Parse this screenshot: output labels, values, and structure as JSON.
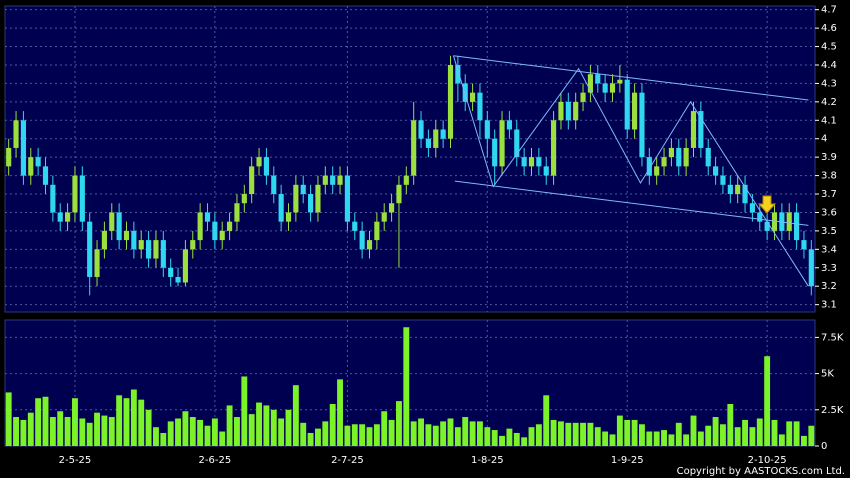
{
  "chart_data": [
    {
      "type": "candlestick",
      "categories": [
        null,
        null,
        null,
        null,
        null,
        null,
        null,
        null,
        null,
        "2-5-25",
        null,
        null,
        null,
        null,
        null,
        null,
        null,
        null,
        null,
        null,
        null,
        null,
        null,
        null,
        null,
        null,
        null,
        null,
        "2-6-25",
        null,
        null,
        null,
        null,
        null,
        null,
        null,
        null,
        null,
        null,
        null,
        null,
        null,
        null,
        null,
        null,
        null,
        "2-7-25",
        null,
        null,
        null,
        null,
        null,
        null,
        null,
        null,
        null,
        null,
        null,
        null,
        null,
        null,
        null,
        null,
        null,
        null,
        "1-8-25",
        null,
        null,
        null,
        null,
        null,
        null,
        null,
        null,
        null,
        null,
        null,
        null,
        null,
        null,
        null,
        null,
        null,
        null,
        "1-9-25",
        null,
        null,
        null,
        null,
        null,
        null,
        null,
        null,
        null,
        null,
        null,
        null,
        null,
        null,
        null,
        null,
        null,
        null,
        "2-10-25",
        null,
        null,
        null,
        null,
        null,
        null
      ],
      "open": [
        3.85,
        3.95,
        4.1,
        3.8,
        3.9,
        3.85,
        3.75,
        3.6,
        3.55,
        3.6,
        3.8,
        3.55,
        3.25,
        3.4,
        3.5,
        3.6,
        3.45,
        3.5,
        3.4,
        3.45,
        3.35,
        3.45,
        3.3,
        3.25,
        3.22,
        3.4,
        3.45,
        3.6,
        3.55,
        3.45,
        3.5,
        3.55,
        3.65,
        3.7,
        3.85,
        3.9,
        3.8,
        3.7,
        3.55,
        3.6,
        3.75,
        3.7,
        3.6,
        3.75,
        3.8,
        3.75,
        3.8,
        3.55,
        3.5,
        3.4,
        3.45,
        3.55,
        3.6,
        3.65,
        3.75,
        3.8,
        4.1,
        4.0,
        3.95,
        4.05,
        4.0,
        4.4,
        4.3,
        4.2,
        4.25,
        4.1,
        4.0,
        3.85,
        4.1,
        4.05,
        3.9,
        3.85,
        3.9,
        3.85,
        3.8,
        4.1,
        4.2,
        4.1,
        4.2,
        4.25,
        4.35,
        4.3,
        4.25,
        4.3,
        4.32,
        4.05,
        4.25,
        3.9,
        3.8,
        3.85,
        3.9,
        3.95,
        3.85,
        3.95,
        4.15,
        3.95,
        3.85,
        3.8,
        3.75,
        3.7,
        3.75,
        3.65,
        3.6,
        3.55,
        3.5,
        3.6,
        3.5,
        3.6,
        3.45,
        3.4
      ],
      "high": [
        4.0,
        4.15,
        4.15,
        3.95,
        3.95,
        3.9,
        3.8,
        3.65,
        3.65,
        3.85,
        3.85,
        3.6,
        3.45,
        3.55,
        3.65,
        3.65,
        3.55,
        3.55,
        3.5,
        3.5,
        3.5,
        3.5,
        3.35,
        3.3,
        3.45,
        3.5,
        3.65,
        3.65,
        3.6,
        3.55,
        3.6,
        3.7,
        3.75,
        3.9,
        3.95,
        3.95,
        3.85,
        3.75,
        3.65,
        3.8,
        3.8,
        3.75,
        3.8,
        3.85,
        3.85,
        3.85,
        3.85,
        3.6,
        3.55,
        3.5,
        3.6,
        3.65,
        3.7,
        3.8,
        3.85,
        4.2,
        4.15,
        4.05,
        4.1,
        4.1,
        4.45,
        4.45,
        4.35,
        4.3,
        4.3,
        4.15,
        4.05,
        4.15,
        4.15,
        4.1,
        3.95,
        3.95,
        3.95,
        3.9,
        4.15,
        4.25,
        4.25,
        4.25,
        4.3,
        4.4,
        4.4,
        4.35,
        4.35,
        4.4,
        4.35,
        4.3,
        4.3,
        3.95,
        3.9,
        3.95,
        4.0,
        4.0,
        4.0,
        4.2,
        4.2,
        4.0,
        3.9,
        3.85,
        3.8,
        3.8,
        3.8,
        3.7,
        3.65,
        3.6,
        3.65,
        3.65,
        3.65,
        3.65,
        3.5,
        3.45
      ],
      "low": [
        3.8,
        3.9,
        3.75,
        3.75,
        3.8,
        3.7,
        3.55,
        3.5,
        3.5,
        3.55,
        3.5,
        3.15,
        3.2,
        3.35,
        3.45,
        3.4,
        3.4,
        3.35,
        3.35,
        3.3,
        3.3,
        3.25,
        3.2,
        3.2,
        3.2,
        3.35,
        3.4,
        3.5,
        3.4,
        3.4,
        3.45,
        3.5,
        3.6,
        3.65,
        3.8,
        3.75,
        3.65,
        3.5,
        3.5,
        3.55,
        3.65,
        3.55,
        3.55,
        3.7,
        3.7,
        3.7,
        3.5,
        3.45,
        3.35,
        3.35,
        3.4,
        3.5,
        3.55,
        3.3,
        3.7,
        3.75,
        3.95,
        3.9,
        3.9,
        3.95,
        3.95,
        4.2,
        4.15,
        4.15,
        4.0,
        3.9,
        3.75,
        3.8,
        4.0,
        3.85,
        3.8,
        3.8,
        3.8,
        3.75,
        3.75,
        4.05,
        4.05,
        4.05,
        4.15,
        4.2,
        4.25,
        4.2,
        4.2,
        4.25,
        4.0,
        4.0,
        3.85,
        3.75,
        3.75,
        3.8,
        3.85,
        3.8,
        3.8,
        3.9,
        3.9,
        3.8,
        3.75,
        3.7,
        3.65,
        3.65,
        3.6,
        3.55,
        3.5,
        3.45,
        3.45,
        3.45,
        3.45,
        3.4,
        3.35,
        3.15
      ],
      "close": [
        3.95,
        4.1,
        3.8,
        3.9,
        3.85,
        3.75,
        3.6,
        3.55,
        3.6,
        3.8,
        3.55,
        3.25,
        3.4,
        3.5,
        3.6,
        3.45,
        3.5,
        3.4,
        3.45,
        3.35,
        3.45,
        3.3,
        3.25,
        3.22,
        3.4,
        3.45,
        3.6,
        3.55,
        3.45,
        3.5,
        3.55,
        3.65,
        3.7,
        3.85,
        3.9,
        3.8,
        3.7,
        3.55,
        3.6,
        3.75,
        3.7,
        3.6,
        3.75,
        3.8,
        3.75,
        3.8,
        3.55,
        3.5,
        3.4,
        3.45,
        3.55,
        3.6,
        3.65,
        3.75,
        3.8,
        4.1,
        4.0,
        3.95,
        4.05,
        4.0,
        4.4,
        4.3,
        4.2,
        4.25,
        4.1,
        4.0,
        3.85,
        4.1,
        4.05,
        3.9,
        3.85,
        3.9,
        3.85,
        3.8,
        4.1,
        4.2,
        4.1,
        4.2,
        4.25,
        4.35,
        4.3,
        4.25,
        4.3,
        4.32,
        4.05,
        4.25,
        3.9,
        3.8,
        3.85,
        3.9,
        3.95,
        3.85,
        3.95,
        4.15,
        3.95,
        3.85,
        3.8,
        3.75,
        3.7,
        3.75,
        3.65,
        3.6,
        3.55,
        3.5,
        3.6,
        3.5,
        3.6,
        3.45,
        3.4,
        3.2
      ],
      "up_color": "#9be03c",
      "down_color": "#2fd8f0",
      "ylim": [
        3.06,
        4.72
      ],
      "yticks": [
        3.1,
        3.2,
        3.3,
        3.4,
        3.5,
        3.6,
        3.7,
        3.8,
        3.9,
        4,
        4.1,
        4.2,
        4.3,
        4.4,
        4.5,
        4.6,
        4.7
      ],
      "grid": true,
      "trendline_color": "#7fb8ff",
      "trendlines": [
        {
          "x": [
            60.4,
            108.6
          ],
          "y": [
            4.45,
            4.21
          ]
        },
        {
          "x": [
            60.6,
            108.6
          ],
          "y": [
            3.77,
            3.53
          ]
        },
        {
          "x": [
            60.4,
            65.8,
            77.4,
            85.8,
            92.6,
            108.6
          ],
          "y": [
            4.45,
            3.74,
            4.38,
            3.76,
            4.2,
            3.2
          ]
        }
      ]
    },
    {
      "type": "bar",
      "values": [
        3700,
        2000,
        1800,
        2300,
        3300,
        3400,
        2000,
        2400,
        2000,
        3300,
        1900,
        1600,
        2300,
        2100,
        2000,
        3500,
        3300,
        3900,
        3200,
        2500,
        1300,
        900,
        1700,
        1900,
        2400,
        2000,
        1800,
        1400,
        1900,
        1000,
        2800,
        2000,
        4800,
        2200,
        3000,
        2800,
        2500,
        1900,
        2500,
        4200,
        1600,
        900,
        1200,
        1700,
        2900,
        4600,
        1400,
        1500,
        1500,
        1300,
        1500,
        2400,
        1800,
        3100,
        8200,
        1700,
        1900,
        1500,
        1400,
        1700,
        1900,
        1300,
        2000,
        1700,
        1700,
        1300,
        1100,
        700,
        1200,
        900,
        600,
        1300,
        1500,
        3500,
        1800,
        1700,
        1600,
        1600,
        1600,
        1600,
        1300,
        1000,
        800,
        2100,
        1800,
        1800,
        1500,
        1000,
        1000,
        1100,
        800,
        1600,
        800,
        2100,
        1000,
        1400,
        2000,
        1500,
        2900,
        1300,
        1800,
        1300,
        1900,
        6200,
        1800,
        800,
        1700,
        1700,
        700,
        1400
      ],
      "color": "#7cf22a",
      "ylim": [
        0,
        8700
      ],
      "yticks": [
        0,
        {
          "value": 2500,
          "label": "2.5K"
        },
        {
          "value": 5000,
          "label": "5K"
        },
        {
          "value": 7500,
          "label": "7.5K"
        }
      ],
      "grid": true
    }
  ],
  "footer": "Copyright by AASTOCKS.com Ltd."
}
